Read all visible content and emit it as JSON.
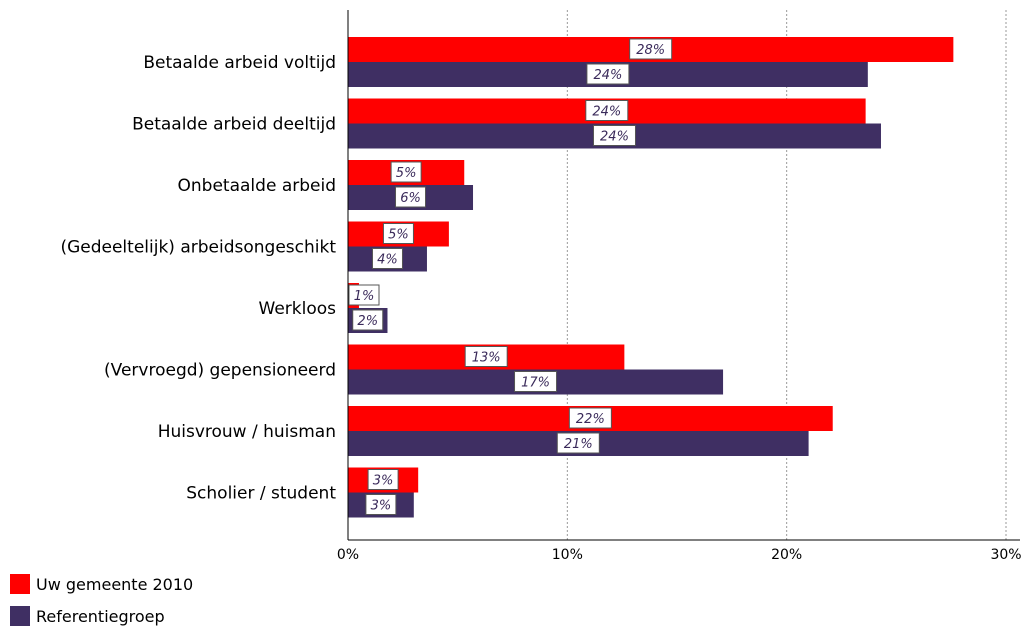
{
  "colors": {
    "series1": "#ff0000",
    "series2": "#3f2f63",
    "grid": "#999999",
    "axis": "#000000"
  },
  "chart_data": {
    "type": "bar",
    "orientation": "horizontal",
    "categories": [
      "Betaalde arbeid voltijd",
      "Betaalde arbeid deeltijd",
      "Onbetaalde arbeid",
      "(Gedeeltelijk) arbeidsongeschikt",
      "Werkloos",
      "(Vervroegd) gepensioneerd",
      "Huisvrouw / huisman",
      "Scholier / student"
    ],
    "series": [
      {
        "name": "Uw gemeente 2010",
        "values": [
          27.6,
          23.6,
          5.3,
          4.6,
          0.5,
          12.6,
          22.1,
          3.2
        ],
        "labels": [
          "28%",
          "24%",
          "5%",
          "5%",
          "1%",
          "13%",
          "22%",
          "3%"
        ]
      },
      {
        "name": "Referentiegroep",
        "values": [
          23.7,
          24.3,
          5.7,
          3.6,
          1.8,
          17.1,
          21.0,
          3.0
        ],
        "labels": [
          "24%",
          "24%",
          "6%",
          "4%",
          "2%",
          "17%",
          "21%",
          "3%"
        ]
      }
    ],
    "xlim": [
      0,
      30
    ],
    "xticks": [
      "0%",
      "10%",
      "20%",
      "30%"
    ],
    "xtick_values": [
      0,
      10,
      20,
      30
    ],
    "grid": true,
    "legend_placement": "bottom-left"
  }
}
